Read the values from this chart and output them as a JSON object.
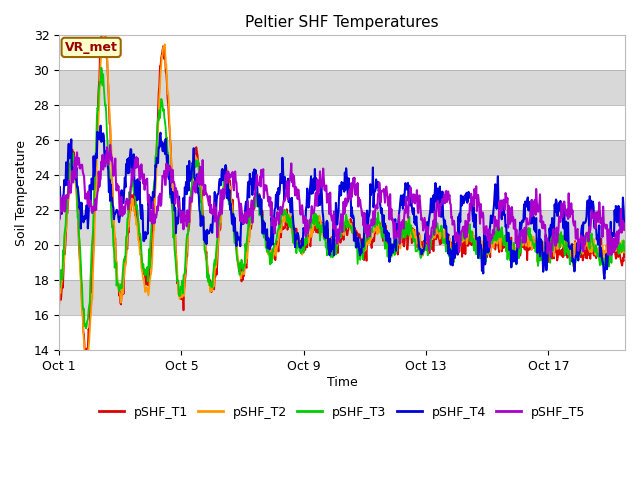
{
  "title": "Peltier SHF Temperatures",
  "xlabel": "Time",
  "ylabel": "Soil Temperature",
  "ylim": [
    14,
    32
  ],
  "yticks": [
    14,
    16,
    18,
    20,
    22,
    24,
    26,
    28,
    30,
    32
  ],
  "xtick_labels": [
    "Oct 1",
    "Oct 5",
    "Oct 9",
    "Oct 13",
    "Oct 17"
  ],
  "xtick_positions": [
    0,
    4,
    8,
    12,
    16
  ],
  "n_days": 18.5,
  "legend_labels": [
    "pSHF_T1",
    "pSHF_T2",
    "pSHF_T3",
    "pSHF_T4",
    "pSHF_T5"
  ],
  "colors": [
    "#dd0000",
    "#ff9900",
    "#00cc00",
    "#0000dd",
    "#aa00cc"
  ],
  "vr_met_label": "VR_met",
  "bg_color": "#ffffff",
  "band_color": "#d8d8d8",
  "points_per_day": 48
}
